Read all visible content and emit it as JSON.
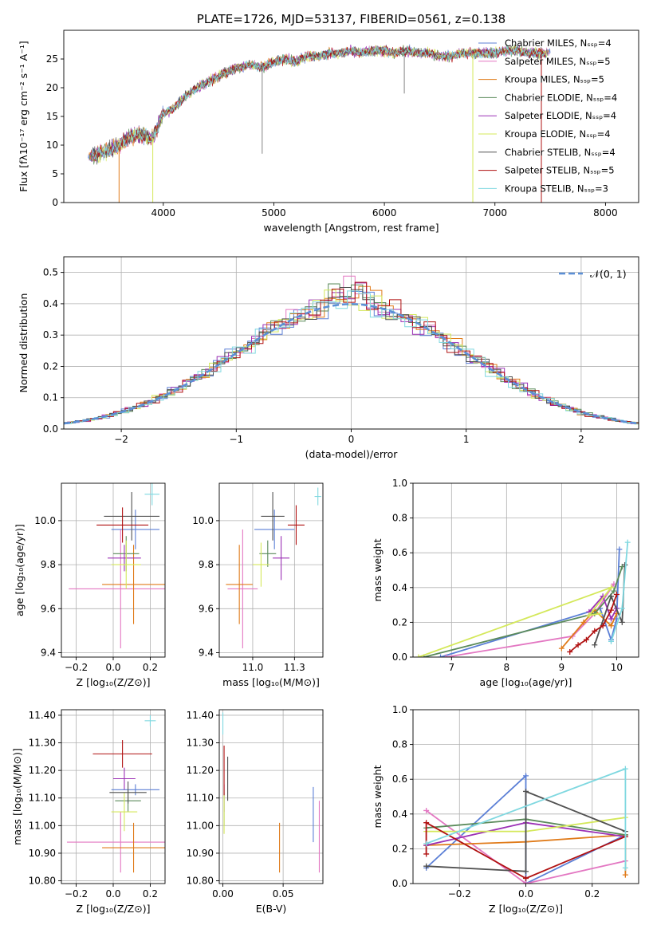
{
  "colors": {
    "chabrier_miles": "#5b7fd6",
    "salpeter_miles": "#e377c2",
    "kroupa_miles": "#e07b1a",
    "chabrier_elodie": "#5a8a5a",
    "salpeter_elodie": "#9b30b5",
    "kroupa_elodie": "#d4e85a",
    "chabrier_stelib": "#505050",
    "salpeter_stelib": "#b01010",
    "kroupa_stelib": "#7fd8e0",
    "normal": "#5b8fd6",
    "grid": "#b0b0b0"
  },
  "chart_data": [
    {
      "id": "spectrum",
      "type": "line",
      "title": "PLATE=1726, MJD=53137, FIBERID=0561, z=0.138",
      "xlabel": "wavelength [Angstrom, rest frame]",
      "ylabel": "Flux [fλ10⁻¹⁷ erg cm⁻² s⁻¹ A⁻¹]",
      "xlim": [
        3100,
        8300
      ],
      "ylim": [
        0,
        30
      ],
      "xticks": [
        4000,
        5000,
        6000,
        7000,
        8000
      ],
      "yticks": [
        0,
        5,
        10,
        15,
        20,
        25
      ],
      "grid": false,
      "legend_position": "upper-right",
      "legend": [
        "Chabrier MILES, Nₛₛₚ=4",
        "Salpeter MILES, Nₛₛₚ=5",
        "Kroupa MILES, Nₛₛₚ=5",
        "Chabrier ELODIE, Nₛₛₚ=4",
        "Salpeter ELODIE, Nₛₛₚ=4",
        "Kroupa ELODIE, Nₛₛₚ=4",
        "Chabrier STELIB, Nₛₛₚ=4",
        "Salpeter STELIB, Nₛₛₚ=5",
        "Kroupa STELIB, Nₛₛₚ=3"
      ],
      "x": [
        3320,
        3400,
        3500,
        3600,
        3700,
        3800,
        3900,
        4000,
        4100,
        4200,
        4300,
        4400,
        4500,
        4600,
        4700,
        4800,
        4900,
        5000,
        5100,
        5200,
        5300,
        5400,
        5500,
        5600,
        5700,
        5800,
        5900,
        6000,
        6100,
        6200,
        6300,
        6400,
        6500,
        6600,
        6700,
        6800,
        6900,
        7000,
        7100,
        7200,
        7300,
        7400,
        7500
      ],
      "y": [
        7.8,
        8.5,
        9.0,
        10.0,
        11.5,
        12.0,
        11.0,
        15.5,
        16.5,
        18.5,
        20.0,
        21.0,
        22.0,
        23.0,
        23.5,
        24.0,
        23.5,
        24.5,
        25.0,
        24.5,
        25.5,
        25.5,
        26.0,
        26.0,
        26.5,
        26.0,
        26.5,
        26.5,
        26.0,
        26.5,
        26.0,
        26.0,
        25.5,
        25.5,
        26.0,
        26.0,
        26.0,
        26.0,
        26.5,
        26.5,
        26.0,
        26.0,
        26.0
      ]
    },
    {
      "id": "residuals",
      "type": "bar",
      "xlabel": "(data-model)/error",
      "ylabel": "Normed distribution",
      "xlim": [
        -2.5,
        2.5
      ],
      "ylim": [
        0,
        0.55
      ],
      "xticks": [
        -2,
        -1,
        0,
        1,
        2
      ],
      "yticks": [
        0.0,
        0.1,
        0.2,
        0.3,
        0.4,
        0.5
      ],
      "grid": true,
      "legend_position": "upper-right",
      "legend": [
        "𝒩(0, 1)"
      ],
      "bin_width": 0.1
    },
    {
      "id": "age_vs_z",
      "type": "scatter",
      "xlabel": "Z [log₁₀(Z/Z⊙)]",
      "ylabel": "age  [log₁₀(age/yr)]",
      "xlim": [
        -0.28,
        0.28
      ],
      "ylim": [
        9.38,
        10.17
      ],
      "xticks": [
        -0.2,
        0.0,
        0.2
      ],
      "yticks": [
        9.4,
        9.6,
        9.8,
        10.0
      ],
      "grid": true,
      "points": [
        {
          "m": "chabrier_miles",
          "x": 0.12,
          "y": 9.96,
          "xe": 0.13,
          "ye": 0.09
        },
        {
          "m": "salpeter_miles",
          "x": 0.04,
          "y": 9.69,
          "xe": 0.28,
          "ye": 0.27
        },
        {
          "m": "kroupa_miles",
          "x": 0.11,
          "y": 9.71,
          "xe": 0.17,
          "ye": 0.18
        },
        {
          "m": "chabrier_elodie",
          "x": 0.07,
          "y": 9.85,
          "xe": 0.07,
          "ye": 0.08
        },
        {
          "m": "salpeter_elodie",
          "x": 0.06,
          "y": 9.83,
          "xe": 0.09,
          "ye": 0.06
        },
        {
          "m": "kroupa_elodie",
          "x": 0.07,
          "y": 9.8,
          "xe": 0.08,
          "ye": 0.11
        },
        {
          "m": "chabrier_stelib",
          "x": 0.1,
          "y": 10.02,
          "xe": 0.15,
          "ye": 0.11
        },
        {
          "m": "salpeter_stelib",
          "x": 0.05,
          "y": 9.98,
          "xe": 0.14,
          "ye": 0.08
        },
        {
          "m": "kroupa_stelib",
          "x": 0.21,
          "y": 10.12,
          "xe": 0.04,
          "ye": 0.05
        }
      ]
    },
    {
      "id": "age_vs_mass",
      "type": "scatter",
      "xlabel": "mass [log₁₀(M/M⊙)]",
      "xlim": [
        10.8,
        11.42
      ],
      "ylim": [
        9.38,
        10.17
      ],
      "xticks": [
        11.0,
        11.25
      ],
      "yticks": [
        9.4,
        9.6,
        9.8,
        10.0
      ],
      "grid": true,
      "points": [
        {
          "m": "chabrier_miles",
          "x": 11.13,
          "y": 9.96,
          "xe": 0.12,
          "ye": 0.09
        },
        {
          "m": "salpeter_miles",
          "x": 10.94,
          "y": 9.69,
          "xe": 0.09,
          "ye": 0.27
        },
        {
          "m": "kroupa_miles",
          "x": 10.92,
          "y": 9.71,
          "xe": 0.08,
          "ye": 0.18
        },
        {
          "m": "chabrier_elodie",
          "x": 11.09,
          "y": 9.85,
          "xe": 0.05,
          "ye": 0.06
        },
        {
          "m": "salpeter_elodie",
          "x": 11.17,
          "y": 9.83,
          "xe": 0.05,
          "ye": 0.1
        },
        {
          "m": "kroupa_elodie",
          "x": 11.05,
          "y": 9.8,
          "xe": 0.05,
          "ye": 0.1
        },
        {
          "m": "chabrier_stelib",
          "x": 11.12,
          "y": 10.02,
          "xe": 0.07,
          "ye": 0.11
        },
        {
          "m": "salpeter_stelib",
          "x": 11.26,
          "y": 9.98,
          "xe": 0.05,
          "ye": 0.09
        },
        {
          "m": "kroupa_stelib",
          "x": 11.39,
          "y": 10.11,
          "xe": 0.02,
          "ye": 0.04
        }
      ]
    },
    {
      "id": "mass_weight_vs_age",
      "type": "line",
      "xlabel": "age  [log₁₀(age/yr)]",
      "ylabel": "mass weight",
      "xlim": [
        6.3,
        10.4
      ],
      "ylim": [
        0,
        1.0
      ],
      "xticks": [
        7,
        8,
        9,
        10
      ],
      "yticks": [
        0.0,
        0.2,
        0.4,
        0.6,
        0.8,
        1.0
      ],
      "grid": true,
      "series": [
        {
          "m": "chabrier_miles",
          "x": [
            6.8,
            9.7,
            9.9,
            10.0,
            10.05
          ],
          "y": [
            0.0,
            0.28,
            0.1,
            0.22,
            0.62
          ]
        },
        {
          "m": "salpeter_miles",
          "x": [
            6.9,
            9.2,
            9.6,
            9.95
          ],
          "y": [
            0.0,
            0.12,
            0.25,
            0.42
          ]
        },
        {
          "m": "kroupa_miles",
          "x": [
            9.0,
            9.4,
            9.6,
            9.9,
            10.0
          ],
          "y": [
            0.05,
            0.2,
            0.27,
            0.18,
            0.25
          ]
        },
        {
          "m": "chabrier_elodie",
          "x": [
            6.5,
            9.6,
            9.95,
            10.1
          ],
          "y": [
            0.0,
            0.25,
            0.38,
            0.52
          ]
        },
        {
          "m": "salpeter_elodie",
          "x": [
            9.5,
            9.75,
            9.9,
            10.0
          ],
          "y": [
            0.26,
            0.35,
            0.22,
            0.28
          ]
        },
        {
          "m": "kroupa_elodie",
          "x": [
            6.4,
            9.9,
            9.5,
            9.7
          ],
          "y": [
            0.0,
            0.4,
            0.24,
            0.25
          ]
        },
        {
          "m": "chabrier_stelib",
          "x": [
            9.6,
            9.9,
            10.1,
            10.15
          ],
          "y": [
            0.07,
            0.35,
            0.2,
            0.53
          ]
        },
        {
          "m": "salpeter_stelib",
          "x": [
            9.15,
            9.3,
            9.45,
            9.6,
            9.75,
            9.9,
            10.0
          ],
          "y": [
            0.03,
            0.07,
            0.1,
            0.15,
            0.18,
            0.27,
            0.36
          ]
        },
        {
          "m": "kroupa_stelib",
          "x": [
            9.9,
            10.1,
            10.2
          ],
          "y": [
            0.09,
            0.28,
            0.66
          ]
        }
      ]
    },
    {
      "id": "mass_vs_z",
      "type": "scatter",
      "xlabel": "Z [log₁₀(Z/Z⊙)]",
      "ylabel": "mass [log₁₀(M/M⊙)]",
      "xlim": [
        -0.28,
        0.28
      ],
      "ylim": [
        10.79,
        11.42
      ],
      "xticks": [
        -0.2,
        0.0,
        0.2
      ],
      "yticks": [
        10.8,
        10.9,
        11.0,
        11.1,
        11.2,
        11.3,
        11.4
      ],
      "grid": true,
      "points": [
        {
          "m": "chabrier_miles",
          "x": 0.12,
          "y": 11.13,
          "xe": 0.13,
          "ye": 0.02
        },
        {
          "m": "salpeter_miles",
          "x": 0.04,
          "y": 10.94,
          "xe": 0.29,
          "ye": 0.11
        },
        {
          "m": "kroupa_miles",
          "x": 0.11,
          "y": 10.92,
          "xe": 0.17,
          "ye": 0.09
        },
        {
          "m": "chabrier_elodie",
          "x": 0.08,
          "y": 11.09,
          "xe": 0.07,
          "ye": 0.04
        },
        {
          "m": "salpeter_elodie",
          "x": 0.06,
          "y": 11.17,
          "xe": 0.06,
          "ye": 0.04
        },
        {
          "m": "kroupa_elodie",
          "x": 0.06,
          "y": 11.05,
          "xe": 0.07,
          "ye": 0.07
        },
        {
          "m": "chabrier_stelib",
          "x": 0.08,
          "y": 11.12,
          "xe": 0.1,
          "ye": 0.04
        },
        {
          "m": "salpeter_stelib",
          "x": 0.05,
          "y": 11.26,
          "xe": 0.16,
          "ye": 0.05
        },
        {
          "m": "kroupa_stelib",
          "x": 0.2,
          "y": 11.38,
          "xe": 0.03,
          "ye": 0.02
        }
      ]
    },
    {
      "id": "mass_vs_ebv",
      "type": "scatter",
      "xlabel": "E(B-V)",
      "xlim": [
        -0.003,
        0.083
      ],
      "ylim": [
        10.79,
        11.42
      ],
      "xticks": [
        0.0,
        0.05
      ],
      "yticks": [
        10.8,
        10.9,
        11.0,
        11.1,
        11.2,
        11.3,
        11.4
      ],
      "grid": true,
      "points": [
        {
          "m": "chabrier_miles",
          "x": 0.075,
          "y": 11.04,
          "xe": 0,
          "ye": 0.1
        },
        {
          "m": "salpeter_miles",
          "x": 0.08,
          "y": 10.96,
          "xe": 0,
          "ye": 0.13
        },
        {
          "m": "kroupa_miles",
          "x": 0.047,
          "y": 10.92,
          "xe": 0,
          "ye": 0.09
        },
        {
          "m": "chabrier_elodie",
          "x": 0.001,
          "y": 11.06,
          "xe": 0,
          "ye": 0.06
        },
        {
          "m": "salpeter_elodie",
          "x": 0.001,
          "y": 11.1,
          "xe": 0,
          "ye": 0.05
        },
        {
          "m": "kroupa_elodie",
          "x": 0.001,
          "y": 11.05,
          "xe": 0,
          "ye": 0.08
        },
        {
          "m": "chabrier_stelib",
          "x": 0.004,
          "y": 11.17,
          "xe": 0,
          "ye": 0.08
        },
        {
          "m": "salpeter_stelib",
          "x": 0.001,
          "y": 11.2,
          "xe": 0,
          "ye": 0.09
        },
        {
          "m": "kroupa_stelib",
          "x": 0.0,
          "y": 11.37,
          "xe": 0,
          "ye": 0.04
        }
      ]
    },
    {
      "id": "mass_weight_vs_z",
      "type": "line",
      "xlabel": "Z [log₁₀(Z/Z⊙)]",
      "ylabel": "mass weight",
      "xlim": [
        -0.34,
        0.34
      ],
      "ylim": [
        0,
        1.0
      ],
      "xticks": [
        -0.2,
        0.0,
        0.2
      ],
      "yticks": [
        0.0,
        0.2,
        0.4,
        0.6,
        0.8,
        1.0
      ],
      "grid": true,
      "series": [
        {
          "m": "chabrier_miles",
          "x": [
            -0.3,
            0.0,
            0.0,
            0.3
          ],
          "y": [
            0.09,
            0.62,
            0.0,
            0.28
          ]
        },
        {
          "m": "salpeter_miles",
          "x": [
            -0.3,
            0.0,
            0.0,
            0.3
          ],
          "y": [
            0.42,
            0.0,
            0.0,
            0.13
          ]
        },
        {
          "m": "kroupa_miles",
          "x": [
            -0.3,
            0.0,
            0.3,
            0.3
          ],
          "y": [
            0.22,
            0.24,
            0.28,
            0.05
          ]
        },
        {
          "m": "chabrier_elodie",
          "x": [
            -0.3,
            0.0,
            0.3
          ],
          "y": [
            0.32,
            0.37,
            0.28
          ]
        },
        {
          "m": "salpeter_elodie",
          "x": [
            -0.3,
            0.0,
            0.3
          ],
          "y": [
            0.22,
            0.35,
            0.27
          ]
        },
        {
          "m": "kroupa_elodie",
          "x": [
            -0.3,
            0.0,
            0.3
          ],
          "y": [
            0.3,
            0.3,
            0.38
          ]
        },
        {
          "m": "chabrier_stelib",
          "x": [
            -0.3,
            0.0,
            0.0,
            0.3
          ],
          "y": [
            0.1,
            0.07,
            0.53,
            0.3
          ]
        },
        {
          "m": "salpeter_stelib",
          "x": [
            -0.3,
            -0.3,
            0.0,
            0.3
          ],
          "y": [
            0.17,
            0.35,
            0.03,
            0.27
          ]
        },
        {
          "m": "kroupa_stelib",
          "x": [
            -0.3,
            0.3,
            0.3
          ],
          "y": [
            0.23,
            0.66,
            0.09
          ]
        }
      ]
    }
  ]
}
